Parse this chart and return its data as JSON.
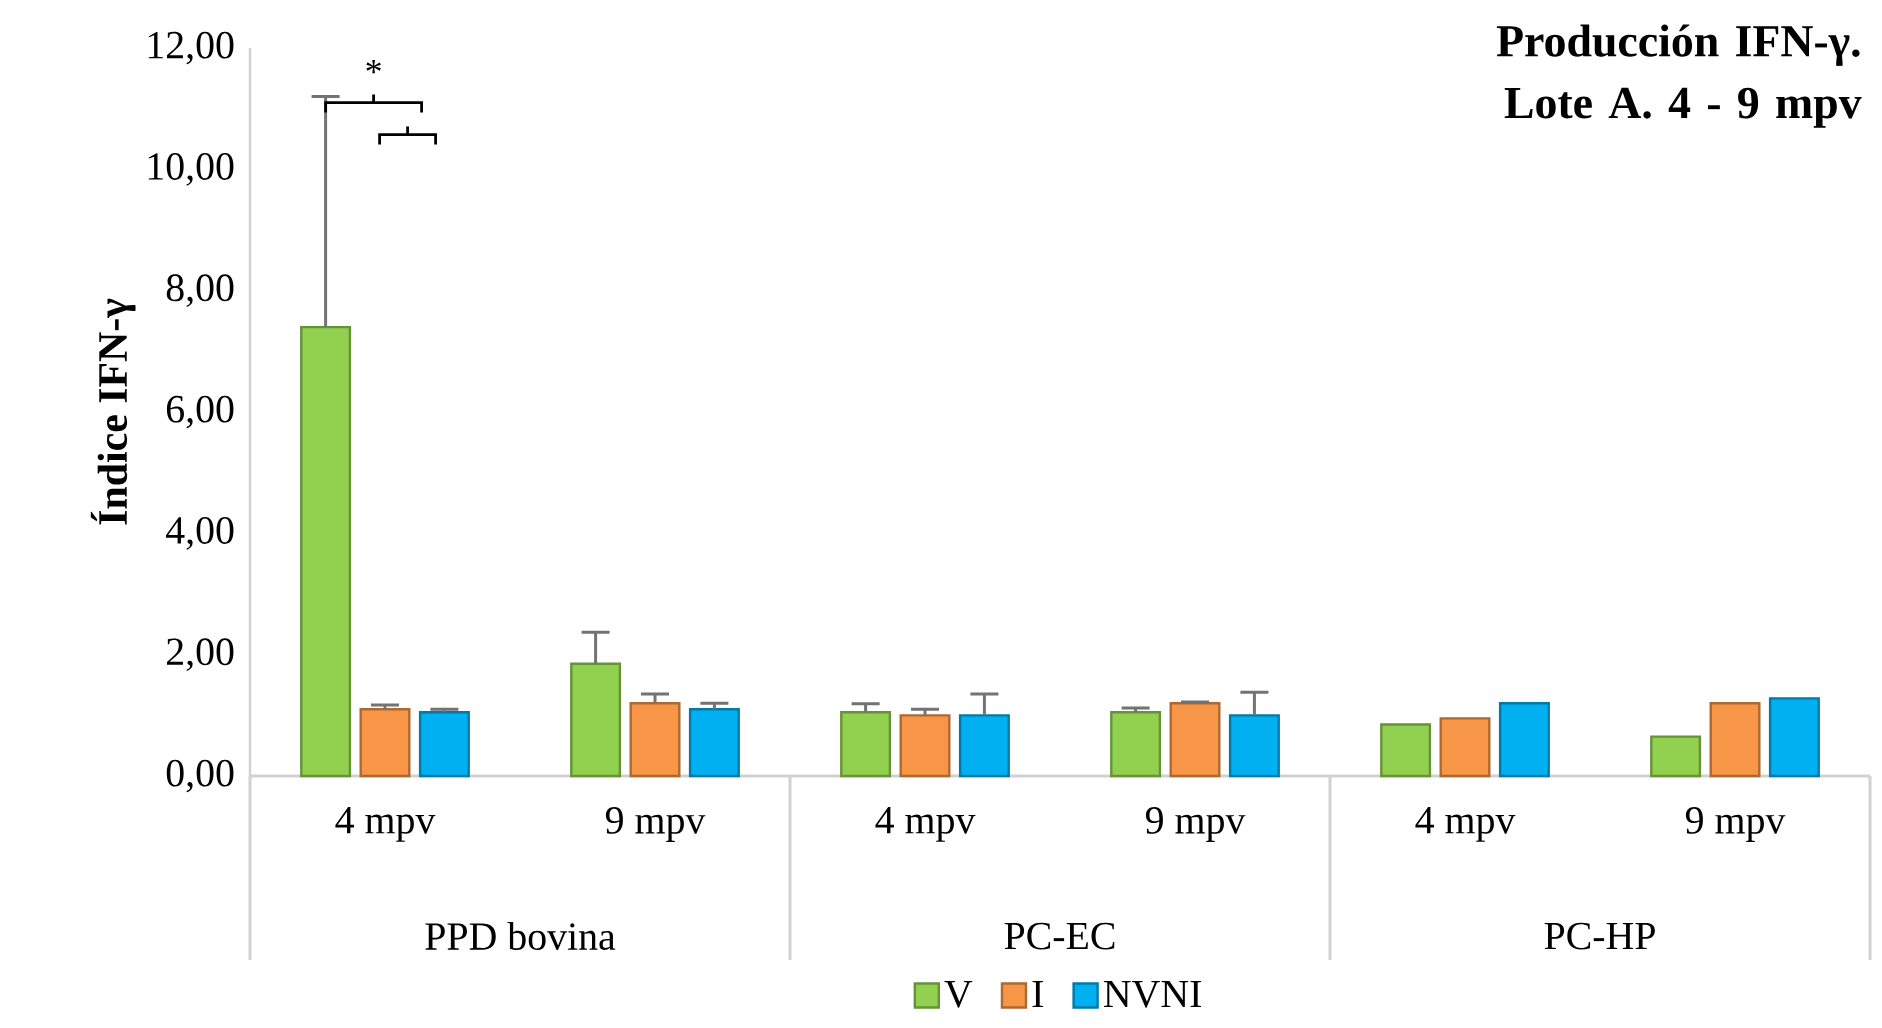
{
  "chart_data": {
    "type": "bar",
    "title": "Producción IFN-γ. Lote A. 4 - 9 mpv",
    "ylabel": "Índice IFN-γ",
    "categories": [
      "4 mpv",
      "9 mpv",
      "4 mpv",
      "9 mpv",
      "4 mpv",
      "9 mpv"
    ],
    "series": [
      {
        "name": "V",
        "color": "#92d050",
        "values": [
          7.4,
          1.85,
          1.05,
          1.05,
          0.85,
          0.65
        ],
        "errors": [
          [
            7.4,
            11.2
          ],
          [
            1.85,
            2.37
          ],
          [
            1.05,
            1.19
          ],
          [
            1.05,
            1.12
          ],
          null,
          null
        ]
      },
      {
        "name": "I",
        "color": "#f79646",
        "values": [
          1.1,
          1.2,
          1.0,
          1.2,
          0.95,
          1.2
        ],
        "errors": [
          [
            1.1,
            1.17
          ],
          [
            1.2,
            1.35
          ],
          [
            1.0,
            1.1
          ],
          [
            1.2,
            1.22
          ],
          null,
          null
        ]
      },
      {
        "name": "NVNI",
        "color": "#00b0f0",
        "values": [
          1.05,
          1.1,
          1.0,
          1.0,
          1.2,
          1.28
        ],
        "errors": [
          [
            1.05,
            1.1
          ],
          [
            1.1,
            1.2
          ],
          [
            1.0,
            1.35
          ],
          [
            1.0,
            1.38
          ],
          null,
          null
        ]
      }
    ],
    "ylim": [
      0,
      12
    ],
    "yticks": [
      {
        "value": 0,
        "label": "0,00"
      },
      {
        "value": 2,
        "label": "2,00"
      },
      {
        "value": 4,
        "label": "4,00"
      },
      {
        "value": 6,
        "label": "6,00"
      },
      {
        "value": 8,
        "label": "8,00"
      },
      {
        "value": 10,
        "label": "10,00"
      },
      {
        "value": 12,
        "label": "12,00"
      }
    ],
    "annotations": [
      "*",
      "PPD bovina",
      "PC-EC",
      "PC-HP"
    ],
    "legend": "bottom",
    "grid": false
  }
}
